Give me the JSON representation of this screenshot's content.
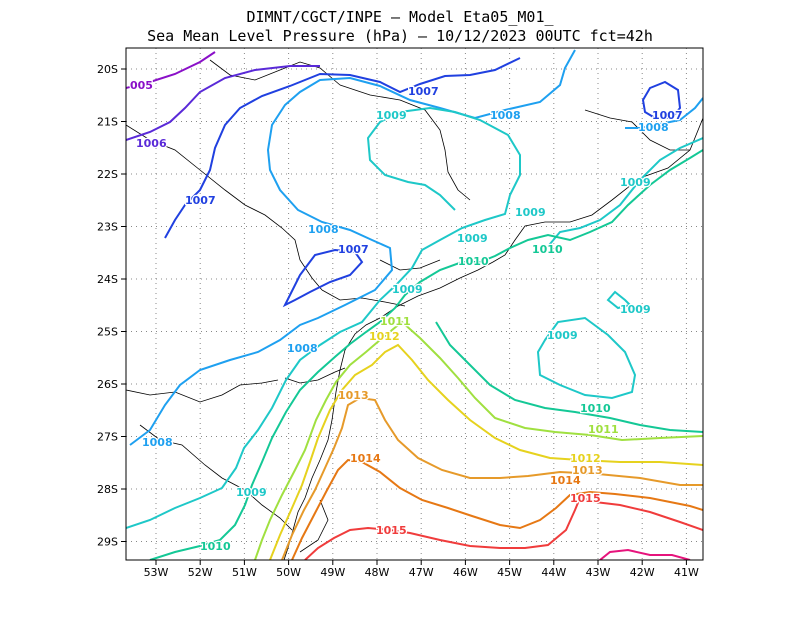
{
  "title_line1": "DIMNT/CGCT/INPE —  Model Eta05_M01_",
  "title_line2": "Sea Mean Level Pressure (hPa) — 10/12/2023 00UTC fct=42h",
  "lat_ticks": [
    "20S",
    "21S",
    "22S",
    "23S",
    "24S",
    "25S",
    "26S",
    "27S",
    "28S",
    "29S"
  ],
  "lon_ticks": [
    "53W",
    "52W",
    "51W",
    "50W",
    "49W",
    "48W",
    "47W",
    "46W",
    "45W",
    "44W",
    "43W",
    "42W",
    "41W"
  ],
  "colors": {
    "1005": "#8a10c8",
    "1006": "#5a2ad8",
    "1007": "#2040e0",
    "1008": "#1ea0f0",
    "1009": "#1ec8c8",
    "1010": "#14c896",
    "1011": "#a0e040",
    "1012": "#e6d21e",
    "1013": "#e69a2a",
    "1014": "#e67814",
    "1015": "#f03c3c",
    "1016": "#e6147c",
    "coast": "#000000",
    "grid": "#888888"
  },
  "contour_labels": [
    {
      "text": "005",
      "level": "1005"
    },
    {
      "text": "1006",
      "level": "1006"
    },
    {
      "text": "1007",
      "level": "1007"
    },
    {
      "text": "1007",
      "level": "1007"
    },
    {
      "text": "1007",
      "level": "1007"
    },
    {
      "text": "1007",
      "level": "1007"
    },
    {
      "text": "1008",
      "level": "1008"
    },
    {
      "text": "1008",
      "level": "1008"
    },
    {
      "text": "1008",
      "level": "1008"
    },
    {
      "text": "1008",
      "level": "1008"
    },
    {
      "text": "1008",
      "level": "1008"
    },
    {
      "text": "1009",
      "level": "1009"
    },
    {
      "text": "1009",
      "level": "1009"
    },
    {
      "text": "1009",
      "level": "1009"
    },
    {
      "text": "1009",
      "level": "1009"
    },
    {
      "text": "1009",
      "level": "1009"
    },
    {
      "text": "1009",
      "level": "1009"
    },
    {
      "text": "1009",
      "level": "1009"
    },
    {
      "text": "1009",
      "level": "1009"
    },
    {
      "text": "1010",
      "level": "1010"
    },
    {
      "text": "1010",
      "level": "1010"
    },
    {
      "text": "1010",
      "level": "1010"
    },
    {
      "text": "1010",
      "level": "1010"
    },
    {
      "text": "1011",
      "level": "1011"
    },
    {
      "text": "1011",
      "level": "1011"
    },
    {
      "text": "1012",
      "level": "1012"
    },
    {
      "text": "1012",
      "level": "1012"
    },
    {
      "text": "1013",
      "level": "1013"
    },
    {
      "text": "1013",
      "level": "1013"
    },
    {
      "text": "1014",
      "level": "1014"
    },
    {
      "text": "1014",
      "level": "1014"
    },
    {
      "text": "1015",
      "level": "1015"
    },
    {
      "text": "1015",
      "level": "1015"
    }
  ]
}
